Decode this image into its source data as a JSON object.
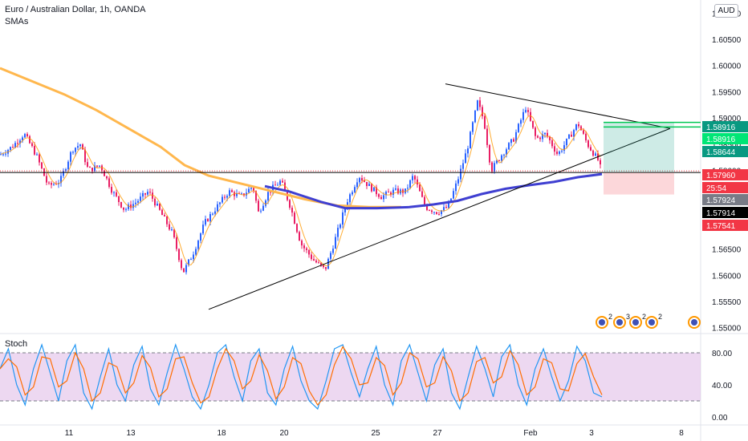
{
  "header": {
    "symbol_title": "Euro / Australian Dollar, 1h, OANDA",
    "indicator_label": "SMAs",
    "currency_button": "AUD",
    "stoch_label": "Stoch"
  },
  "colors": {
    "up_candle": "#2962ff",
    "down_candle": "#e91e63",
    "sma_fast": "#ff9800",
    "sma_long": "#ffb74d",
    "sma_mid": "#3f3fd1",
    "stoch_k": "#2196f3",
    "stoch_d": "#ff6d00",
    "stoch_band": "#e1bee7"
  },
  "chart_data": [
    {
      "type": "candlestick",
      "title": "Euro / Australian Dollar, 1h, OANDA",
      "x_ticks": [
        "11",
        "13",
        "18",
        "20",
        "25",
        "27",
        "Feb",
        "3",
        "8"
      ],
      "y_ticks": [
        "1.61000",
        "1.60500",
        "1.60000",
        "1.59500",
        "1.59000",
        "1.58500",
        "1.58000",
        "1.57500",
        "1.56500",
        "1.56000",
        "1.55500",
        "1.55000"
      ],
      "ylim": [
        1.5495,
        1.6125
      ],
      "price_labels": [
        {
          "value": "1.58916",
          "color": "#089981"
        },
        {
          "value": "1.58916",
          "color": "#00e676"
        },
        {
          "value": "1.58644",
          "color": "#089981"
        },
        {
          "value": "1.57960",
          "color": "#f23645"
        },
        {
          "value": "25:54",
          "color": "#f23645"
        },
        {
          "value": "1.57924",
          "color": "#787b86"
        },
        {
          "value": "1.57914",
          "color": "#000000"
        },
        {
          "value": "1.57541",
          "color": "#f23645"
        }
      ],
      "close_path": [
        [
          0,
          1.583
        ],
        [
          15,
          1.5845
        ],
        [
          30,
          1.587
        ],
        [
          45,
          1.583
        ],
        [
          60,
          1.577
        ],
        [
          75,
          1.578
        ],
        [
          90,
          1.584
        ],
        [
          100,
          1.585
        ],
        [
          110,
          1.58
        ],
        [
          125,
          1.581
        ],
        [
          140,
          1.576
        ],
        [
          155,
          1.5725
        ],
        [
          170,
          1.574
        ],
        [
          185,
          1.576
        ],
        [
          200,
          1.572
        ],
        [
          215,
          1.568
        ],
        [
          228,
          1.5605
        ],
        [
          240,
          1.564
        ],
        [
          255,
          1.57
        ],
        [
          270,
          1.573
        ],
        [
          285,
          1.576
        ],
        [
          300,
          1.575
        ],
        [
          315,
          1.577
        ],
        [
          322,
          1.572
        ],
        [
          335,
          1.576
        ],
        [
          350,
          1.578
        ],
        [
          362,
          1.573
        ],
        [
          375,
          1.566
        ],
        [
          390,
          1.563
        ],
        [
          405,
          1.561
        ],
        [
          420,
          1.568
        ],
        [
          432,
          1.574
        ],
        [
          447,
          1.579
        ],
        [
          460,
          1.577
        ],
        [
          475,
          1.575
        ],
        [
          490,
          1.576
        ],
        [
          505,
          1.576
        ],
        [
          515,
          1.579
        ],
        [
          530,
          1.573
        ],
        [
          545,
          1.572
        ],
        [
          558,
          1.573
        ],
        [
          570,
          1.578
        ],
        [
          582,
          1.584
        ],
        [
          595,
          1.593
        ],
        [
          603,
          1.5895
        ],
        [
          612,
          1.58
        ],
        [
          625,
          1.583
        ],
        [
          640,
          1.586
        ],
        [
          655,
          1.592
        ],
        [
          668,
          1.586
        ],
        [
          680,
          1.587
        ],
        [
          695,
          1.583
        ],
        [
          708,
          1.586
        ],
        [
          720,
          1.589
        ],
        [
          732,
          1.585
        ],
        [
          745,
          1.582
        ],
        [
          750,
          1.5796
        ]
      ],
      "sma_long_path": [
        [
          0,
          1.5995
        ],
        [
          40,
          1.597
        ],
        [
          80,
          1.5945
        ],
        [
          120,
          1.5915
        ],
        [
          160,
          1.588
        ],
        [
          200,
          1.5845
        ],
        [
          230,
          1.581
        ],
        [
          260,
          1.579
        ],
        [
          300,
          1.5775
        ],
        [
          340,
          1.576
        ],
        [
          380,
          1.5745
        ],
        [
          420,
          1.5733
        ],
        [
          460,
          1.573
        ],
        [
          500,
          1.573
        ]
      ],
      "sma_mid_path": [
        [
          330,
          1.577
        ],
        [
          360,
          1.576
        ],
        [
          400,
          1.574
        ],
        [
          430,
          1.5728
        ],
        [
          470,
          1.5728
        ],
        [
          510,
          1.573
        ],
        [
          540,
          1.5735
        ],
        [
          570,
          1.5742
        ],
        [
          600,
          1.5755
        ],
        [
          630,
          1.5765
        ],
        [
          660,
          1.5772
        ],
        [
          690,
          1.5778
        ],
        [
          720,
          1.5787
        ],
        [
          750,
          1.5793
        ]
      ],
      "trendlines": [
        {
          "from": [
            555,
            1.5965
          ],
          "to": [
            835,
            1.588
          ]
        },
        {
          "from": [
            260,
            1.5535
          ],
          "to": [
            835,
            1.588
          ]
        }
      ],
      "horizontal_lines": [
        1.5796,
        1.58916,
        1.58644
      ],
      "position_box": {
        "x_start": 752,
        "x_end": 840,
        "entry": 1.5796,
        "target": 1.58916,
        "stop": 1.57541
      },
      "event_markers": [
        {
          "x": 750,
          "count": "2"
        },
        {
          "x": 772,
          "count": "3"
        },
        {
          "x": 792,
          "count": "2"
        },
        {
          "x": 812,
          "count": "2"
        },
        {
          "x": 865,
          "count": ""
        }
      ]
    },
    {
      "type": "line",
      "title": "Stoch",
      "y_ticks": [
        "80.00",
        "40.00",
        "0.00"
      ],
      "ylim": [
        -5,
        100
      ],
      "band": [
        20,
        80
      ],
      "series": [
        {
          "values": [
            60,
            85,
            40,
            15,
            60,
            90,
            55,
            20,
            70,
            90,
            30,
            10,
            50,
            85,
            40,
            20,
            65,
            88,
            35,
            15,
            55,
            90,
            60,
            25,
            10,
            40,
            80,
            90,
            50,
            20,
            70,
            85,
            30,
            15,
            60,
            88,
            45,
            20,
            10,
            45,
            85,
            90,
            55,
            25,
            60,
            88,
            40,
            15,
            70,
            90,
            55,
            20,
            65,
            85,
            30,
            10,
            50,
            88,
            60,
            25,
            75,
            90,
            40,
            15,
            60,
            85,
            50,
            20,
            45,
            88,
            70,
            30,
            25
          ]
        }
      ]
    }
  ]
}
